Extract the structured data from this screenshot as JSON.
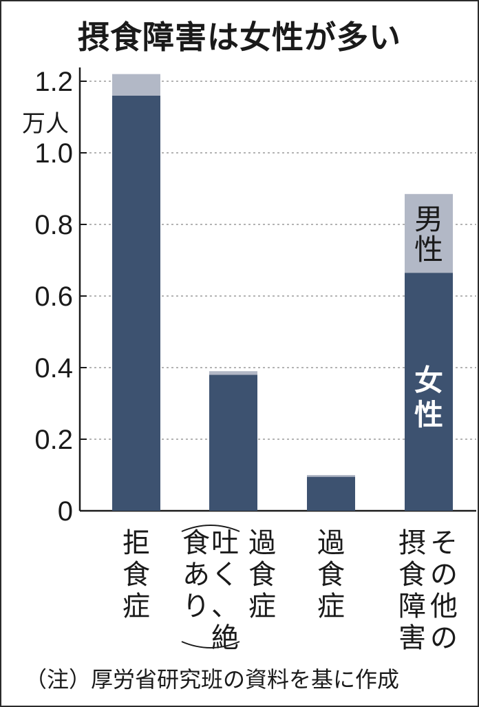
{
  "chart_data": {
    "type": "bar",
    "stacked": true,
    "title": "摂食障害は女性が多い",
    "ylabel": "万人",
    "ylim": [
      0,
      1.2
    ],
    "yticks": [
      "0",
      "0.2",
      "0.4",
      "0.6",
      "0.8",
      "1.0",
      "1.2"
    ],
    "grid": true,
    "categories": [
      {
        "lines": [
          "拒",
          "食",
          "症"
        ]
      },
      {
        "lines": [
          "過",
          "食",
          "症"
        ],
        "sub_lines": [
          "吐く、",
          "食あり"
        ],
        "sub_extra": "絶"
      },
      {
        "lines": [
          "過",
          "食",
          "症"
        ]
      },
      {
        "lines": [
          "その他の",
          "摂食障害"
        ]
      }
    ],
    "series": [
      {
        "name": "女性",
        "values": [
          1.16,
          0.38,
          0.095,
          0.665
        ],
        "color": "#3d5270"
      },
      {
        "name": "男性",
        "values": [
          0.06,
          0.01,
          0.005,
          0.22
        ],
        "color": "#b2b8c6"
      }
    ],
    "note": "（注）厚労省研究班の資料を基に作成"
  }
}
